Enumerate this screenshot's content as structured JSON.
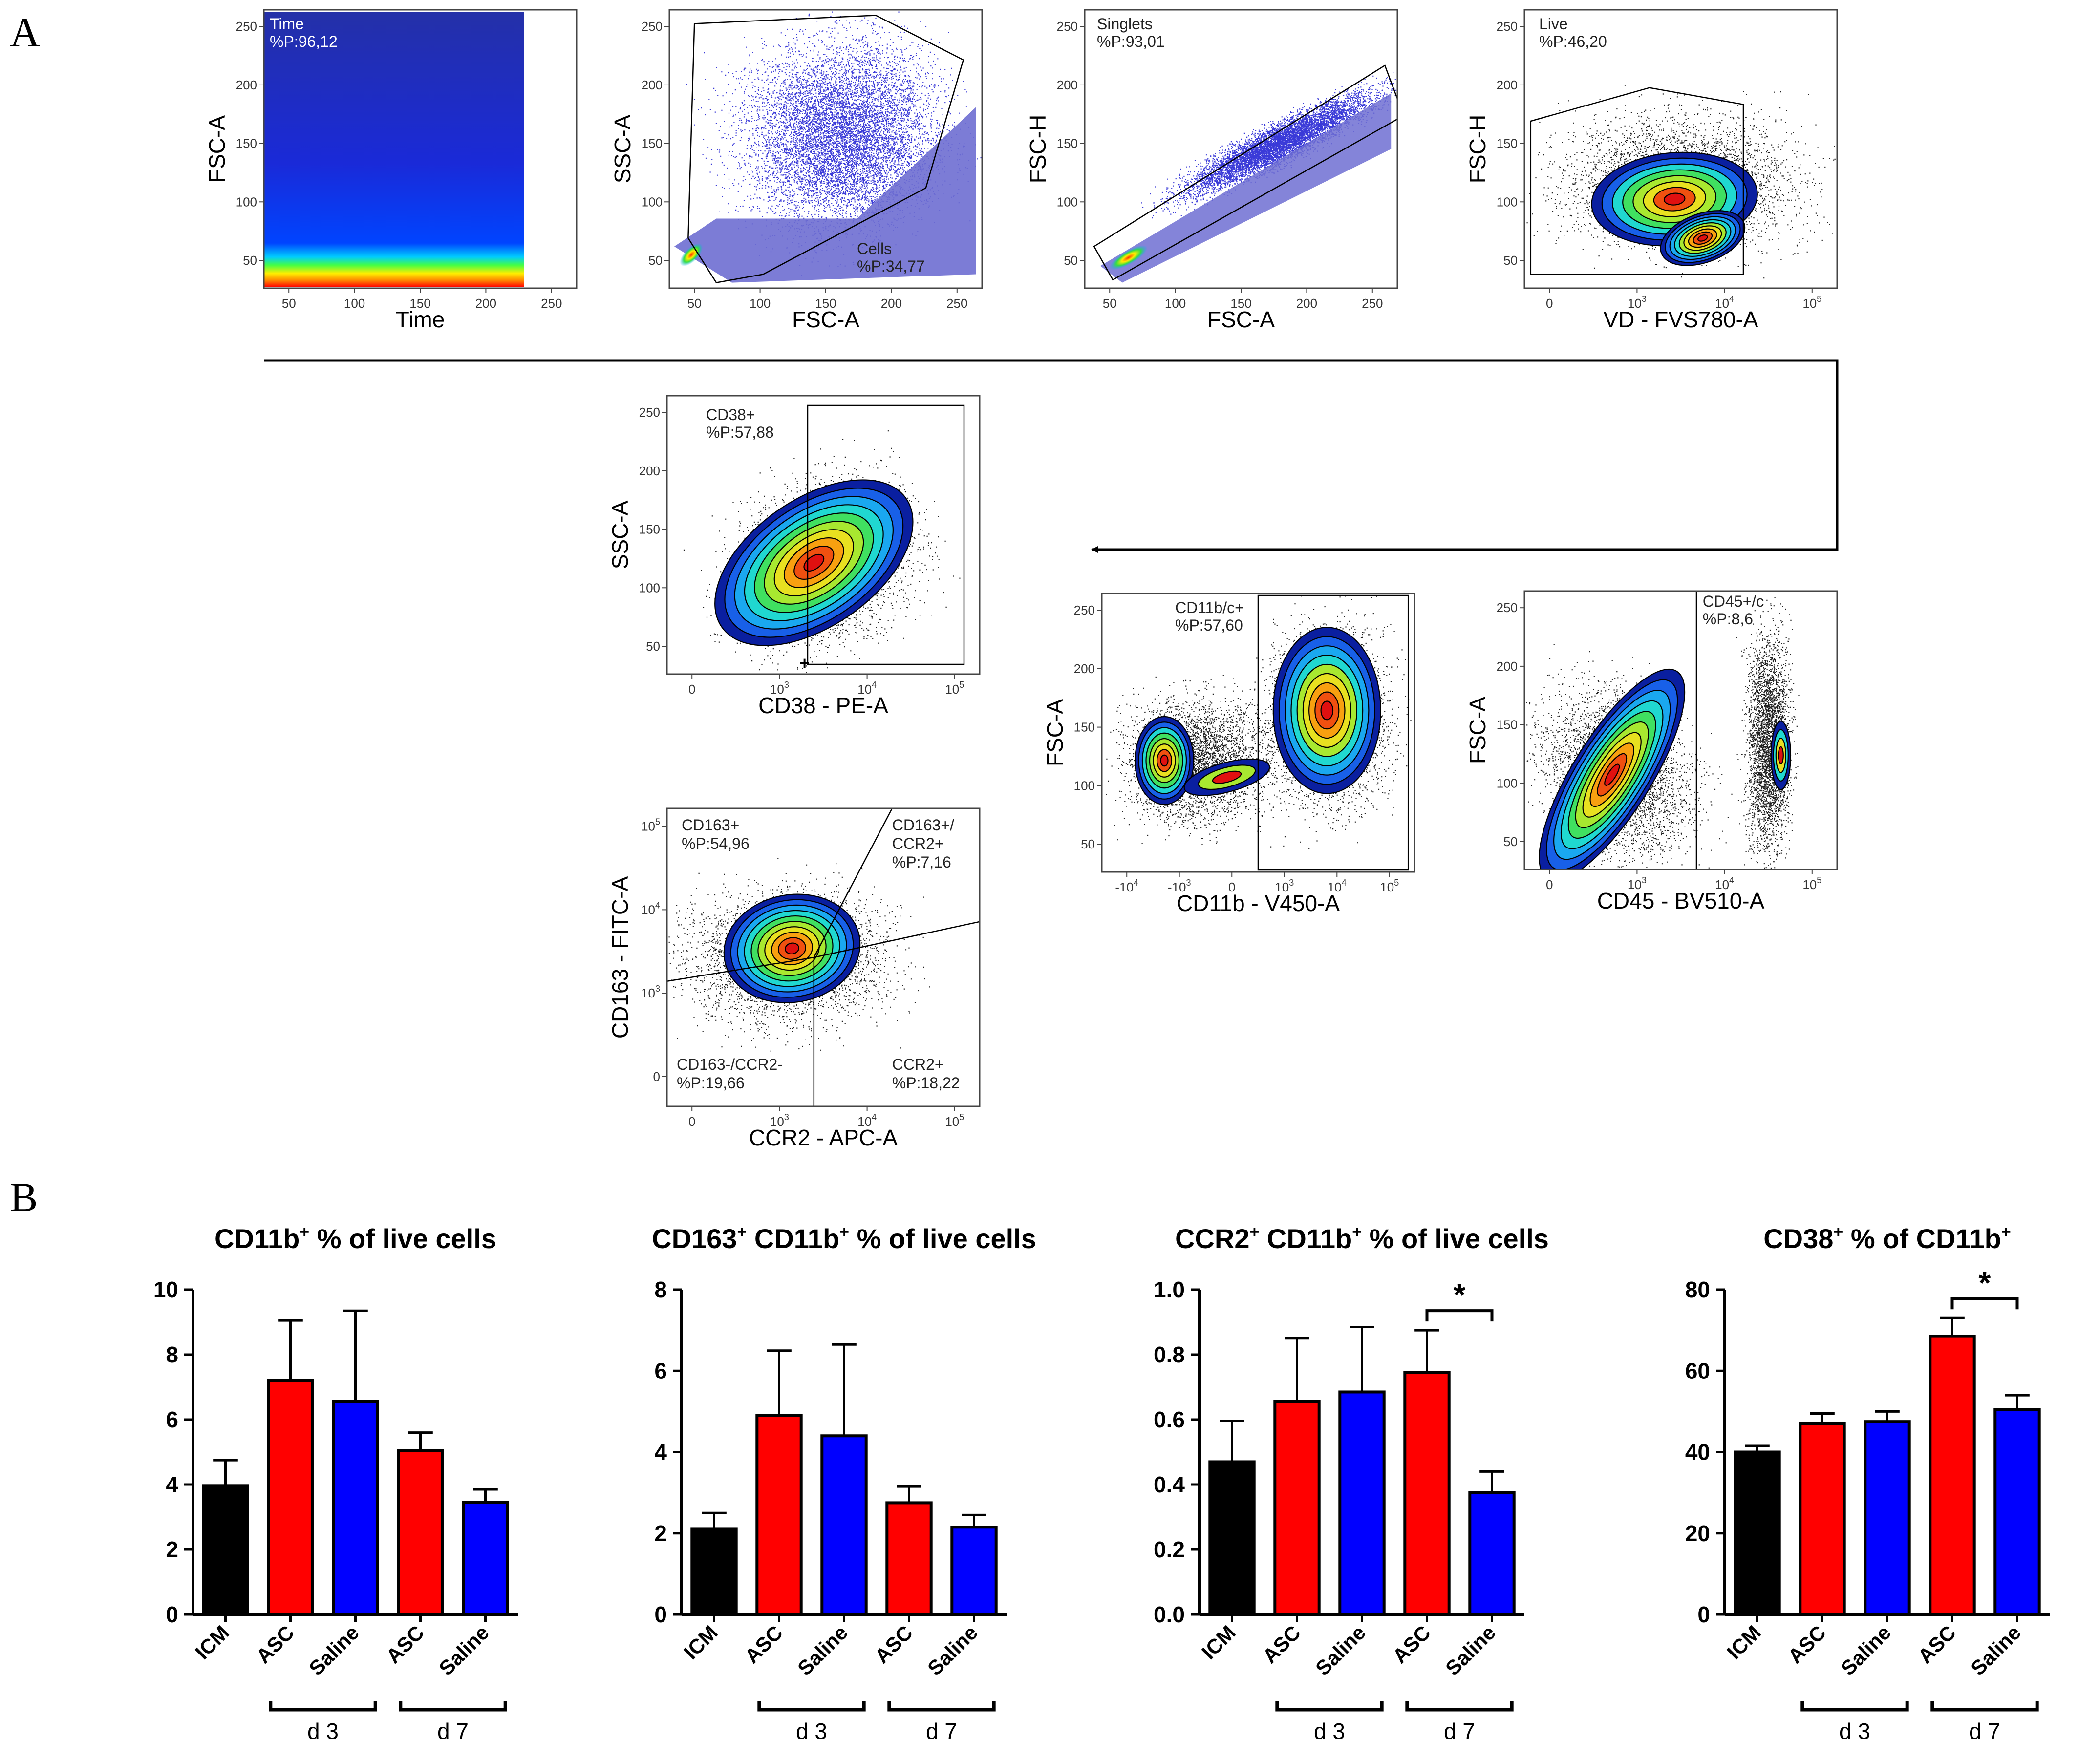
{
  "panel_labels": {
    "a": "A",
    "b": "B"
  },
  "colors": {
    "black": "#000000",
    "asc": "#ff0000",
    "saline": "#0000ff",
    "icm": "#000000",
    "dot_dark": "#202020",
    "dot_blue": "#3a3ad8",
    "fill_lavender": "#6e6ed2"
  },
  "flow_plots": [
    {
      "id": "time",
      "style": "time",
      "x_label": "Time",
      "y_label": "FSC-A",
      "x_ticks": [
        "50",
        "100",
        "150",
        "200",
        "250"
      ],
      "y_ticks": [
        "50",
        "100",
        "150",
        "200",
        "250"
      ],
      "gate_label": "Time",
      "gate_value": "%P:96,12"
    },
    {
      "id": "cells",
      "style": "scatter_blue",
      "x_label": "FSC-A",
      "y_label": "SSC-A",
      "x_ticks": [
        "50",
        "100",
        "150",
        "200",
        "250"
      ],
      "y_ticks": [
        "50",
        "100",
        "150",
        "200",
        "250"
      ],
      "gate_label": "Cells",
      "gate_value": "%P:34,77"
    },
    {
      "id": "singlets",
      "style": "diagonal",
      "x_label": "FSC-A",
      "y_label": "FSC-H",
      "x_ticks": [
        "50",
        "100",
        "150",
        "200",
        "250"
      ],
      "y_ticks": [
        "50",
        "100",
        "150",
        "200",
        "250"
      ],
      "gate_label": "Singlets",
      "gate_value": "%P:93,01"
    },
    {
      "id": "live",
      "style": "contour_black",
      "x_label": "VD - FVS780-A",
      "y_label": "FSC-H",
      "x_ticks": [
        "0",
        "10",
        "10",
        "10"
      ],
      "x_ticks_exp": [
        "",
        "3",
        "4",
        "5"
      ],
      "y_ticks": [
        "50",
        "100",
        "150",
        "200",
        "250"
      ],
      "gate_label": "Live",
      "gate_value": "%P:46,20"
    },
    {
      "id": "cd45",
      "style": "contour_black",
      "x_label": "CD45 - BV510-A",
      "y_label": "FSC-A",
      "x_ticks": [
        "0",
        "10",
        "10",
        "10"
      ],
      "x_ticks_exp": [
        "",
        "3",
        "4",
        "5"
      ],
      "y_ticks": [
        "50",
        "100",
        "150",
        "200",
        "250"
      ],
      "gate_label": "CD45+/c",
      "gate_value": "%P:8,6"
    },
    {
      "id": "cd11b",
      "style": "contour_black",
      "x_label": "CD11b - V450-A",
      "y_label": "FSC-A",
      "x_ticks": [
        "-10",
        "-10",
        "0",
        "10",
        "10",
        "10"
      ],
      "x_ticks_exp": [
        "4",
        "3",
        "",
        "3",
        "4",
        "5"
      ],
      "y_ticks": [
        "50",
        "100",
        "150",
        "200",
        "250"
      ],
      "gate_label": "CD11b/c+",
      "gate_value": "%P:57,60"
    },
    {
      "id": "cd38",
      "style": "contour_black",
      "x_label": "CD38 - PE-A",
      "y_label": "SSC-A",
      "x_ticks": [
        "0",
        "10",
        "10",
        "10"
      ],
      "x_ticks_exp": [
        "",
        "3",
        "4",
        "5"
      ],
      "y_ticks": [
        "50",
        "100",
        "150",
        "200",
        "250"
      ],
      "gate_label": "CD38+",
      "gate_value": "%P:57,88"
    },
    {
      "id": "cd163",
      "style": "contour_black",
      "x_label": "CCR2 - APC-A",
      "y_label": "CD163 - FITC-A",
      "x_ticks": [
        "0",
        "10",
        "10",
        "10"
      ],
      "x_ticks_exp": [
        "",
        "3",
        "4",
        "5"
      ],
      "y_ticks": [
        "0",
        "10",
        "10",
        "10"
      ],
      "y_ticks_exp": [
        "",
        "3",
        "4",
        "5"
      ],
      "quadrants": [
        {
          "label": "CD163+",
          "value": "%P:54,96"
        },
        {
          "label": "CD163+/",
          "label2": "CCR2+",
          "value": "%P:7,16"
        },
        {
          "label": "CD163-/CCR2-",
          "value": "%P:19,66"
        },
        {
          "label": "CCR2+",
          "value": "%P:18,22"
        }
      ]
    }
  ],
  "chart_data": [
    {
      "type": "bar",
      "title": "CD11b",
      "title_sup": "+",
      "title_rest": " % of live cells",
      "categories": [
        "ICM",
        "ASC",
        "Saline",
        "ASC",
        "Saline"
      ],
      "values": [
        3.95,
        7.2,
        6.55,
        5.05,
        3.45
      ],
      "errors": [
        0.8,
        1.85,
        2.8,
        0.55,
        0.4
      ],
      "ylim": [
        0,
        10
      ],
      "yticks": [
        "0",
        "2",
        "4",
        "6",
        "8",
        "10"
      ],
      "groups": [
        {
          "label": "d 3",
          "from": 1,
          "to": 2
        },
        {
          "label": "d 7",
          "from": 3,
          "to": 4
        }
      ],
      "significance": null
    },
    {
      "type": "bar",
      "title": "CD163",
      "title_sup": "+",
      "title_rest": " CD11b",
      "title_sup2": "+",
      "title_rest2": " % of live cells",
      "categories": [
        "ICM",
        "ASC",
        "Saline",
        "ASC",
        "Saline"
      ],
      "values": [
        2.1,
        4.9,
        4.4,
        2.75,
        2.15
      ],
      "errors": [
        0.4,
        1.6,
        2.25,
        0.4,
        0.3
      ],
      "ylim": [
        0,
        8
      ],
      "yticks": [
        "0",
        "2",
        "4",
        "6",
        "8"
      ],
      "groups": [
        {
          "label": "d 3",
          "from": 1,
          "to": 2
        },
        {
          "label": "d 7",
          "from": 3,
          "to": 4
        }
      ],
      "significance": null
    },
    {
      "type": "bar",
      "title": "CCR2",
      "title_sup": "+",
      "title_rest": " CD11b",
      "title_sup2": "+",
      "title_rest2": " % of live cells",
      "categories": [
        "ICM",
        "ASC",
        "Saline",
        "ASC",
        "Saline"
      ],
      "values": [
        0.47,
        0.655,
        0.685,
        0.745,
        0.375
      ],
      "errors": [
        0.125,
        0.195,
        0.2,
        0.13,
        0.065
      ],
      "ylim": [
        0,
        1.0
      ],
      "yticks": [
        "0.0",
        "0.2",
        "0.4",
        "0.6",
        "0.8",
        "1.0"
      ],
      "groups": [
        {
          "label": "d 3",
          "from": 1,
          "to": 2
        },
        {
          "label": "d 7",
          "from": 3,
          "to": 4
        }
      ],
      "significance": {
        "from": 3,
        "to": 4,
        "label": "*"
      }
    },
    {
      "type": "bar",
      "title": "CD38",
      "title_sup": "+",
      "title_rest": " % of CD11b",
      "title_sup2": "+",
      "title_rest2": "",
      "categories": [
        "ICM",
        "ASC",
        "Saline",
        "ASC",
        "Saline"
      ],
      "values": [
        40,
        47,
        47.5,
        68.5,
        50.5
      ],
      "errors": [
        1.5,
        2.5,
        2.5,
        4.5,
        3.5
      ],
      "ylim": [
        0,
        80
      ],
      "yticks": [
        "0",
        "20",
        "40",
        "60",
        "80"
      ],
      "groups": [
        {
          "label": "d 3",
          "from": 1,
          "to": 2
        },
        {
          "label": "d 7",
          "from": 3,
          "to": 4
        }
      ],
      "significance": {
        "from": 3,
        "to": 4,
        "label": "*"
      }
    }
  ]
}
